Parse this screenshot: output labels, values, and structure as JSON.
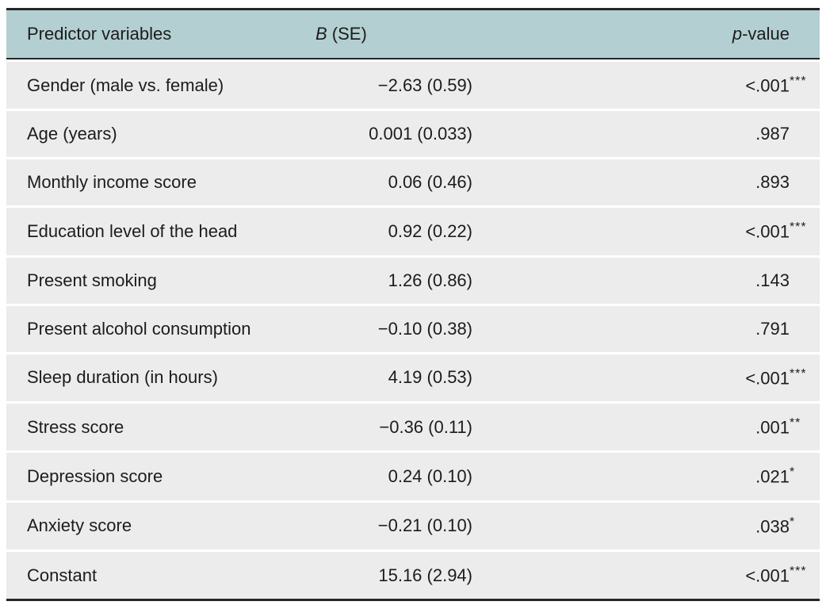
{
  "table": {
    "header": {
      "predictor": "Predictor variables",
      "b_italic": "B",
      "b_rest": " (SE)",
      "p_italic": "p",
      "p_rest": "-value"
    },
    "rows": [
      {
        "predictor": "Gender (male vs. female)",
        "b_se": "−2.63 (0.59)",
        "p": "<.001",
        "stars": "***"
      },
      {
        "predictor": "Age (years)",
        "b_se": "0.001 (0.033)",
        "p": ".987",
        "stars": ""
      },
      {
        "predictor": "Monthly income score",
        "b_se": "0.06 (0.46)",
        "p": ".893",
        "stars": ""
      },
      {
        "predictor": "Education level of the head",
        "b_se": "0.92 (0.22)",
        "p": "<.001",
        "stars": "***"
      },
      {
        "predictor": "Present smoking",
        "b_se": "1.26 (0.86)",
        "p": ".143",
        "stars": ""
      },
      {
        "predictor": "Present alcohol consumption",
        "b_se": "−0.10 (0.38)",
        "p": ".791",
        "stars": ""
      },
      {
        "predictor": "Sleep duration (in hours)",
        "b_se": "4.19 (0.53)",
        "p": "<.001",
        "stars": "***"
      },
      {
        "predictor": "Stress score",
        "b_se": "−0.36 (0.11)",
        "p": ".001",
        "stars": "**"
      },
      {
        "predictor": "Depression score",
        "b_se": "0.24 (0.10)",
        "p": ".021",
        "stars": "*"
      },
      {
        "predictor": "Anxiety score",
        "b_se": "−0.21 (0.10)",
        "p": ".038",
        "stars": "*"
      },
      {
        "predictor": "Constant",
        "b_se": "15.16 (2.94)",
        "p": "<.001",
        "stars": "***"
      }
    ]
  },
  "colors": {
    "header_background": "#b3cfd1",
    "row_background": "#ececec",
    "rule": "#262626"
  },
  "chart_data": {
    "type": "table",
    "columns": [
      "Predictor variables",
      "B (SE)",
      "p-value"
    ],
    "rows": [
      [
        "Gender (male vs. female)",
        "−2.63 (0.59)",
        "<.001***"
      ],
      [
        "Age (years)",
        "0.001 (0.033)",
        ".987"
      ],
      [
        "Monthly income score",
        "0.06 (0.46)",
        ".893"
      ],
      [
        "Education level of the head",
        "0.92 (0.22)",
        "<.001***"
      ],
      [
        "Present smoking",
        "1.26 (0.86)",
        ".143"
      ],
      [
        "Present alcohol consumption",
        "−0.10 (0.38)",
        ".791"
      ],
      [
        "Sleep duration (in hours)",
        "4.19 (0.53)",
        "<.001***"
      ],
      [
        "Stress score",
        "−0.36 (0.11)",
        ".001**"
      ],
      [
        "Depression score",
        "0.24 (0.10)",
        ".021*"
      ],
      [
        "Anxiety score",
        "−0.21 (0.10)",
        ".038*"
      ],
      [
        "Constant",
        "15.16 (2.94)",
        "<.001***"
      ]
    ]
  }
}
